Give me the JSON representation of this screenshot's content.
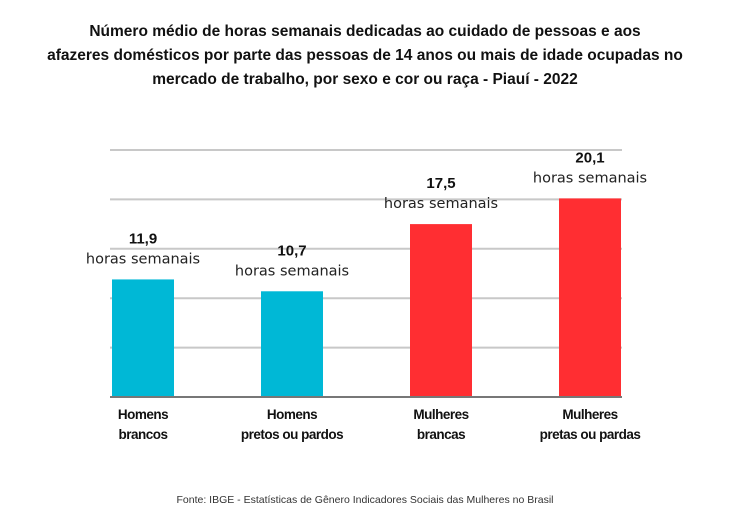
{
  "chart_data": {
    "type": "bar",
    "title_lines": [
      "Número médio de horas semanais dedicadas ao cuidado de pessoas e aos",
      "afazeres domésticos por parte das pessoas de 14 anos ou mais de idade ocupadas no",
      "mercado de trabalho, por sexo e cor ou raça - Piauí - 2022"
    ],
    "categories": [
      [
        "Homens",
        "brancos"
      ],
      [
        "Homens",
        "pretos ou pardos"
      ],
      [
        "Mulheres",
        "brancas"
      ],
      [
        "Mulheres",
        "pretas ou pardas"
      ]
    ],
    "values": [
      11.9,
      10.7,
      17.5,
      20.1
    ],
    "value_labels": [
      "11,9",
      "10,7",
      "17,5",
      "20,1"
    ],
    "unit_label": "horas semanais",
    "colors": [
      "#00b8d6",
      "#00b8d6",
      "#ff2e32",
      "#ff2e32"
    ],
    "ylim": [
      0,
      25
    ],
    "gridlines": [
      5,
      10,
      15,
      20,
      25
    ],
    "grid": true,
    "xlabel": "",
    "ylabel": ""
  },
  "source": "Fonte: IBGE - Estatísticas de Gênero Indicadores Sociais das Mulheres no Brasil"
}
